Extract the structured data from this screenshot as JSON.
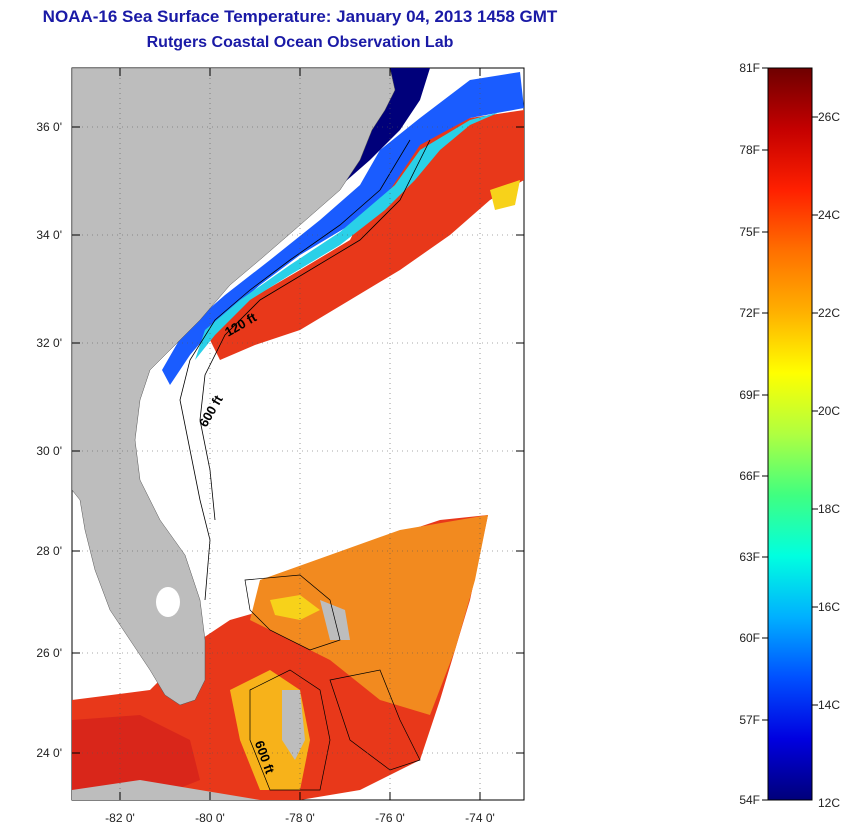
{
  "title": {
    "line1": "NOAA-16 Sea Surface Temperature:  January 04, 2013 1458 GMT",
    "line2": "Rutgers Coastal Ocean Observation Lab"
  },
  "map": {
    "lon_range": [
      -83,
      -73
    ],
    "lat_range": [
      23,
      37
    ],
    "lon_ticks": [
      "-82 0'",
      "-80 0'",
      "-78 0'",
      "-76 0'",
      "-74 0'"
    ],
    "lat_ticks": [
      "36 0'",
      "34 0'",
      "32 0'",
      "30 0'",
      "28 0'",
      "26 0'",
      "24 0'"
    ],
    "contour_labels": [
      "120 ft",
      "600 ft",
      "600 ft"
    ],
    "colors": {
      "land": "#bdbdbd",
      "warm": "#e8381a",
      "orange": "#f28a1f",
      "yellow": "#f7d21a",
      "cyan": "#2ad0e8",
      "blue": "#1a5cff",
      "navy": "#00007a"
    }
  },
  "colorbar": {
    "fahrenheit": [
      "81F",
      "78F",
      "75F",
      "72F",
      "69F",
      "66F",
      "63F",
      "60F",
      "57F",
      "54F"
    ],
    "celsius": [
      "26C",
      "24C",
      "22C",
      "20C",
      "18C",
      "16C",
      "14C",
      "12C"
    ],
    "stops": [
      "#6e0000",
      "#c40000",
      "#ff2000",
      "#ff7000",
      "#ffb000",
      "#ffff00",
      "#b0ff40",
      "#40ff80",
      "#00ffe0",
      "#00b0ff",
      "#0050ff",
      "#0000e0",
      "#00007a"
    ]
  }
}
